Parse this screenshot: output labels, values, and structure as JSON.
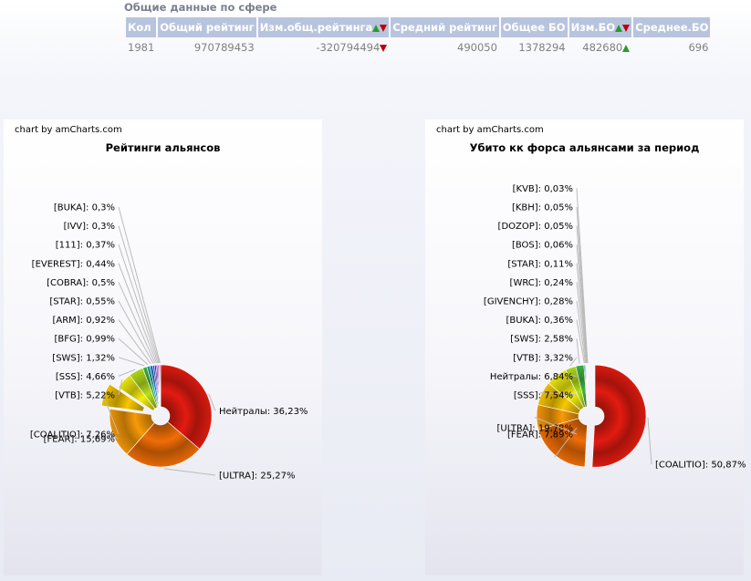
{
  "summary": {
    "title": "Общие данные по сфере",
    "headers": [
      "Кол",
      "Общий рейтинг",
      "Изм.общ.рейтинга",
      "Средний рейтинг",
      "Общее БО",
      "Изм.БО",
      "Среднее.БО"
    ],
    "row": [
      "1981",
      "970789453",
      "-320794494",
      "490050",
      "1378294",
      "482680",
      "696"
    ]
  },
  "charts": [
    {
      "credit": "chart by amCharts.com",
      "title": "Рейтинги альянсов"
    },
    {
      "credit": "chart by amCharts.com",
      "title": "Убито кк форса альянсами за период"
    }
  ],
  "chart_data": [
    {
      "type": "pie",
      "title": "Рейтинги альянсов",
      "slices": [
        {
          "label": "Нейтралы",
          "value": 36.23,
          "text": "Нейтралы: 36,23%",
          "color": "#e31b10"
        },
        {
          "label": "[ULTRA]",
          "value": 25.27,
          "text": "[ULTRA]: 25,27%",
          "color": "#f06e06"
        },
        {
          "label": "[FEAR]",
          "value": 15.69,
          "text": "[FEAR]: 15,69%",
          "color": "#f89a08"
        },
        {
          "label": "[COALITIO]",
          "value": 7.26,
          "text": "[COALITIO]: 7,26%",
          "color": "#f8c800",
          "pulled": true
        },
        {
          "label": "[VTB]",
          "value": 5.22,
          "text": "[VTB]: 5,22%",
          "color": "#f2ee10"
        },
        {
          "label": "[SSS]",
          "value": 4.66,
          "text": "[SSS]: 4,66%",
          "color": "#b6e01c"
        },
        {
          "label": "[SWS]",
          "value": 1.32,
          "text": "[SWS]: 1,32%",
          "color": "#3fb83f"
        },
        {
          "label": "[BFG]",
          "value": 0.99,
          "text": "[BFG]: 0,99%",
          "color": "#1d9fa2"
        },
        {
          "label": "[ARM]",
          "value": 0.92,
          "text": "[ARM]: 0,92%",
          "color": "#1f6fd8"
        },
        {
          "label": "[STAR]",
          "value": 0.55,
          "text": "[STAR]: 0,55%",
          "color": "#2b3fd0"
        },
        {
          "label": "[COBRA]",
          "value": 0.5,
          "text": "[COBRA]: 0,5%",
          "color": "#4a22c0"
        },
        {
          "label": "[EVEREST]",
          "value": 0.44,
          "text": "[EVEREST]: 0,44%",
          "color": "#7a1ec0"
        },
        {
          "label": "[111]",
          "value": 0.37,
          "text": "[111]: 0,37%",
          "color": "#a01aa8"
        },
        {
          "label": "[IVV]",
          "value": 0.3,
          "text": "[IVV]: 0,3%",
          "color": "#c0188a"
        },
        {
          "label": "[BUKA]",
          "value": 0.3,
          "text": "[BUKA]: 0,3%",
          "color": "#d41860"
        }
      ]
    },
    {
      "type": "pie",
      "title": "Убито кк форса альянсами за период",
      "slices": [
        {
          "label": "[COALITIO]",
          "value": 50.87,
          "text": "[COALITIO]: 50,87%",
          "color": "#e31b10",
          "pulled": true
        },
        {
          "label": "[ULTRA]",
          "value": 19.78,
          "text": "[ULTRA]: 19,78%",
          "color": "#f06e06"
        },
        {
          "label": "[FEAR]",
          "value": 7.89,
          "text": "[FEAR]: 7,89%",
          "color": "#f89a08"
        },
        {
          "label": "[SSS]",
          "value": 7.54,
          "text": "[SSS]: 7,54%",
          "color": "#f8c800"
        },
        {
          "label": "Нейтралы",
          "value": 6.84,
          "text": "Нейтралы: 6,84%",
          "color": "#f2ee10"
        },
        {
          "label": "[VTB]",
          "value": 3.32,
          "text": "[VTB]: 3,32%",
          "color": "#b6e01c"
        },
        {
          "label": "[SWS]",
          "value": 2.58,
          "text": "[SWS]: 2,58%",
          "color": "#3fb83f"
        },
        {
          "label": "[BUKA]",
          "value": 0.36,
          "text": "[BUKA]: 0,36%",
          "color": "#1d9fa2"
        },
        {
          "label": "[GIVENCHY]",
          "value": 0.28,
          "text": "[GIVENCHY]: 0,28%",
          "color": "#1f6fd8"
        },
        {
          "label": "[WRC]",
          "value": 0.24,
          "text": "[WRC]: 0,24%",
          "color": "#2b3fd0"
        },
        {
          "label": "[STAR]",
          "value": 0.11,
          "text": "[STAR]: 0,11%",
          "color": "#4a22c0"
        },
        {
          "label": "[BOS]",
          "value": 0.06,
          "text": "[BOS]: 0,06%",
          "color": "#7a1ec0"
        },
        {
          "label": "[DOZOP]",
          "value": 0.05,
          "text": "[DOZOP]: 0,05%",
          "color": "#a01aa8"
        },
        {
          "label": "[KBH]",
          "value": 0.05,
          "text": "[KBH]: 0,05%",
          "color": "#c0188a"
        },
        {
          "label": "[KVB]",
          "value": 0.03,
          "text": "[KVB]: 0,03%",
          "color": "#d41860"
        }
      ]
    }
  ]
}
